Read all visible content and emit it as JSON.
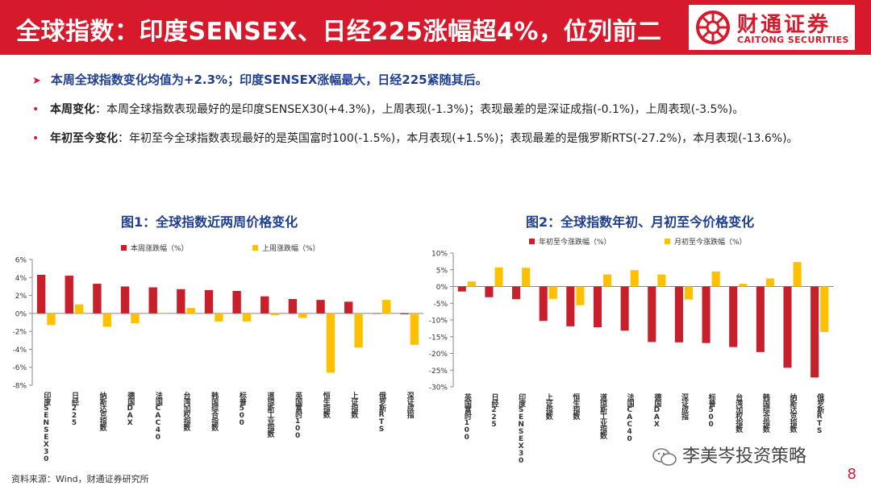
{
  "header": {
    "title": "全球指数：印度SENSEX、日经225涨幅超4%，位列前二",
    "logo_cn": "财通证券",
    "logo_en": "CAITONG SECURITIES"
  },
  "summary": "本周全球指数变化均值为+2.3%；印度SENSEX涨幅最大，日经225紧随其后。",
  "bullets": [
    {
      "label": "本周变化",
      "text": "：本周全球指数表现最好的是印度SENSEX30(+4.3%)，上周表现(-1.3%)；表现最差的是深证成指(-0.1%)，上周表现(-3.5%)。"
    },
    {
      "label": "年初至今变化",
      "text": "：年初至今全球指数表现最好的是英国富时100(-1.5%)，本月表现(+1.5%)；表现最差的是俄罗斯RTS(-27.2%)，本月表现(-13.6%)。"
    }
  ],
  "colors": {
    "red": "#c8202a",
    "yellow": "#ffc000",
    "accent": "#d7192c",
    "title_blue": "#1f3e8f"
  },
  "chart_data": [
    {
      "type": "bar",
      "title": "图1：全球指数近两周价格变化",
      "categories": [
        "印度SENSEX30",
        "日经225",
        "纳斯达克指数",
        "德国DAX",
        "法国CAC40",
        "台湾加权指数",
        "韩国综合指数",
        "标普500",
        "道琼斯工业指数",
        "英国富时100",
        "恒生指数",
        "上证指数",
        "俄罗斯RTS",
        "深证成指"
      ],
      "series": [
        {
          "name": "本周涨跌幅（%）",
          "values": [
            4.3,
            4.2,
            3.3,
            3.0,
            2.9,
            2.7,
            2.6,
            2.5,
            1.9,
            1.6,
            1.5,
            1.3,
            0.0,
            -0.1
          ]
        },
        {
          "name": "上周涨跌幅（%）",
          "values": [
            -1.3,
            1.0,
            -1.5,
            -1.1,
            0.0,
            0.6,
            -0.9,
            -0.9,
            -0.2,
            -0.5,
            -6.6,
            -3.8,
            1.5,
            -3.5
          ]
        }
      ],
      "ylim": [
        -8,
        6
      ],
      "yticks": [
        "6%",
        "4%",
        "2%",
        "0%",
        "-2%",
        "-4%",
        "-6%",
        "-8%"
      ],
      "legend": "top"
    },
    {
      "type": "bar",
      "title": "图2：全球指数年初、月初至今价格变化",
      "categories": [
        "英国富时100",
        "日经225",
        "印度SENSEX30",
        "上证指数",
        "恒生指数",
        "道琼斯工业指数",
        "法国CAC40",
        "德国DAX",
        "深证成指",
        "标普500",
        "台湾加权指数",
        "韩国综合指数",
        "纳斯达克指数",
        "俄罗斯RTS"
      ],
      "series": [
        {
          "name": "年初至今涨跌幅（%）",
          "values": [
            -1.5,
            -3.2,
            -3.8,
            -10.3,
            -11.9,
            -12.2,
            -13.2,
            -16.6,
            -16.7,
            -16.9,
            -18.1,
            -19.6,
            -24.3,
            -27.2
          ]
        },
        {
          "name": "月初至今涨跌幅（%）",
          "values": [
            1.5,
            5.7,
            5.6,
            -3.7,
            -5.6,
            3.6,
            4.9,
            3.6,
            -3.9,
            4.5,
            0.8,
            2.4,
            7.3,
            -13.6
          ]
        }
      ],
      "ylim": [
        -30,
        10
      ],
      "yticks": [
        "10%",
        "5%",
        "0%",
        "-5%",
        "-10%",
        "-15%",
        "-20%",
        "-25%",
        "-30%"
      ],
      "legend": "top"
    }
  ],
  "footer": {
    "source": "资料来源：Wind，财通证券研究所",
    "watermark": "李美岑投资策略",
    "page": "8"
  }
}
